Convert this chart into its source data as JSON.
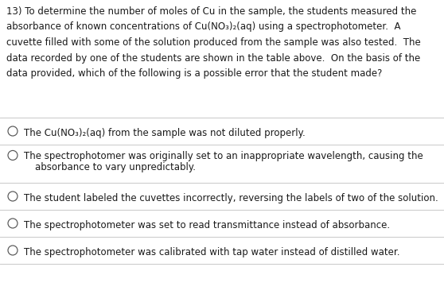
{
  "background_color": "#ffffff",
  "question_text_lines": [
    "13) To determine the number of moles of Cu in the sample, the students measured the",
    "absorbance of known concentrations of Cu(NO₃)₂(aq) using a spectrophotometer.  A",
    "cuvette filled with some of the solution produced from the sample was also tested.  The",
    "data recorded by one of the students are shown in the table above.  On the basis of the",
    "data provided, which of the following is a possible error that the student made?"
  ],
  "options": [
    {
      "lines": [
        "The Cu(NO₃)₂(aq) from the sample was not diluted properly."
      ]
    },
    {
      "lines": [
        "The spectrophotomer was originally set to an inappropriate wavelength, causing the",
        "    absorbance to vary unpredictably."
      ]
    },
    {
      "lines": [
        "The student labeled the cuvettes incorrectly, reversing the labels of two of the solution."
      ]
    },
    {
      "lines": [
        "The spectrophotometer was set to read transmittance instead of absorbance."
      ]
    },
    {
      "lines": [
        "The spectrophotometer was calibrated with tap water instead of distilled water."
      ]
    }
  ],
  "divider_color": "#c8c8c8",
  "text_color": "#1a1a1a",
  "circle_color": "#555555",
  "font_size": 8.5,
  "fig_width": 5.58,
  "fig_height": 3.75,
  "dpi": 100
}
